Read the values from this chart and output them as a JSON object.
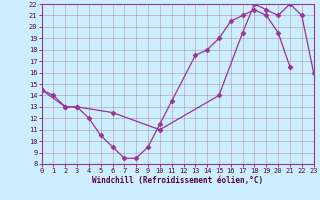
{
  "xlabel": "Windchill (Refroidissement éolien,°C)",
  "background_color": "#cceeff",
  "grid_color": "#aa88aa",
  "line_color": "#993399",
  "marker_color": "#993399",
  "xlim": [
    0,
    23
  ],
  "ylim": [
    8,
    22
  ],
  "xticks": [
    0,
    1,
    2,
    3,
    4,
    5,
    6,
    7,
    8,
    9,
    10,
    11,
    12,
    13,
    14,
    15,
    16,
    17,
    18,
    19,
    20,
    21,
    22,
    23
  ],
  "yticks": [
    8,
    9,
    10,
    11,
    12,
    13,
    14,
    15,
    16,
    17,
    18,
    19,
    20,
    21,
    22
  ],
  "curve1_x": [
    0,
    1,
    2,
    3,
    4,
    5,
    6,
    7,
    8,
    9,
    10,
    11,
    13,
    14,
    15,
    16,
    17,
    18,
    19,
    20,
    21
  ],
  "curve1_y": [
    14.5,
    14.0,
    13.0,
    13.0,
    12.0,
    10.5,
    9.5,
    8.5,
    8.5,
    9.5,
    11.5,
    13.5,
    17.5,
    18.0,
    19.0,
    20.5,
    21.0,
    21.5,
    21.0,
    19.5,
    16.5
  ],
  "curve2_x": [
    0,
    2,
    3,
    6,
    10,
    15,
    17,
    18,
    19,
    20,
    21,
    22,
    23
  ],
  "curve2_y": [
    14.5,
    13.0,
    13.0,
    12.5,
    11.0,
    14.0,
    19.5,
    22.0,
    21.5,
    21.0,
    22.0,
    21.0,
    16.0
  ]
}
